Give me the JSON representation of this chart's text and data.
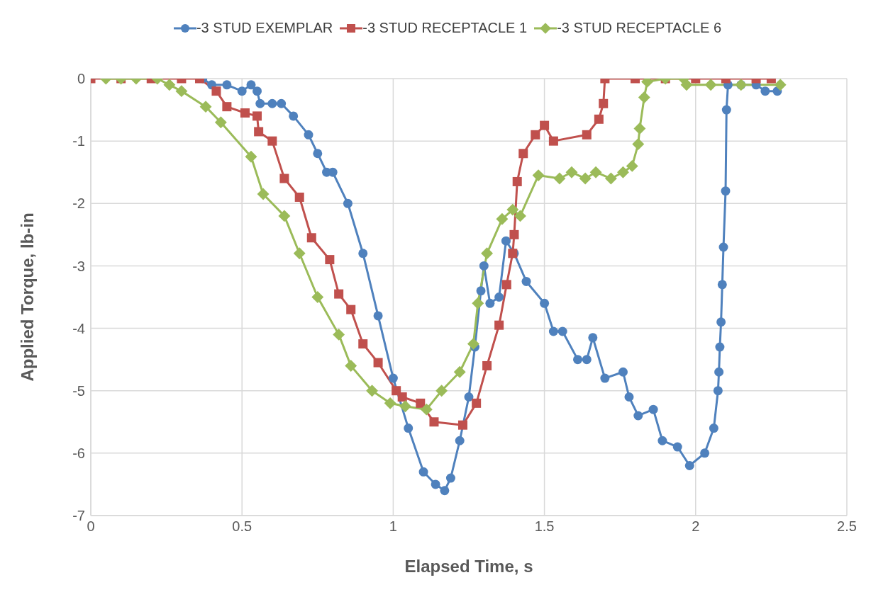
{
  "chart_data": {
    "type": "line",
    "xlabel": "Elapsed Time, s",
    "ylabel": "Applied Torque, lb-in",
    "xlim": [
      0,
      2.5
    ],
    "xticks": [
      0,
      0.5,
      1,
      1.5,
      2,
      2.5
    ],
    "ylim": [
      -7,
      0
    ],
    "yticks": [
      -7,
      -6,
      -5,
      -4,
      -3,
      -2,
      -1,
      0
    ],
    "grid": true,
    "legend": "top",
    "series": [
      {
        "name": "-3 STUD EXEMPLAR",
        "color": "#4f81bd",
        "marker": "circle",
        "x": [
          0.37,
          0.4,
          0.45,
          0.5,
          0.53,
          0.55,
          0.56,
          0.6,
          0.63,
          0.67,
          0.72,
          0.75,
          0.78,
          0.8,
          0.85,
          0.9,
          0.95,
          1.0,
          1.05,
          1.1,
          1.14,
          1.17,
          1.19,
          1.22,
          1.25,
          1.27,
          1.29,
          1.3,
          1.32,
          1.35,
          1.373,
          1.4,
          1.44,
          1.5,
          1.53,
          1.56,
          1.61,
          1.64,
          1.66,
          1.7,
          1.76,
          1.78,
          1.81,
          1.86,
          1.89,
          1.94,
          1.98,
          2.03,
          2.06,
          2.074,
          2.077,
          2.08,
          2.084,
          2.088,
          2.092,
          2.099,
          2.102,
          2.107,
          2.15,
          2.2,
          2.23,
          2.27
        ],
        "values": [
          0,
          -0.1,
          -0.1,
          -0.2,
          -0.1,
          -0.2,
          -0.4,
          -0.4,
          -0.4,
          -0.6,
          -0.9,
          -1.2,
          -1.5,
          -1.5,
          -2.0,
          -2.8,
          -3.8,
          -4.8,
          -5.6,
          -6.3,
          -6.5,
          -6.6,
          -6.4,
          -5.8,
          -5.1,
          -4.3,
          -3.4,
          -3.0,
          -3.6,
          -3.5,
          -2.6,
          -2.8,
          -3.25,
          -3.6,
          -4.05,
          -4.05,
          -4.5,
          -4.5,
          -4.15,
          -4.8,
          -4.7,
          -5.1,
          -5.4,
          -5.3,
          -5.8,
          -5.9,
          -6.2,
          -6.0,
          -5.6,
          -5.0,
          -4.7,
          -4.3,
          -3.9,
          -3.3,
          -2.7,
          -1.8,
          -0.5,
          -0.1,
          -0.1,
          -0.1,
          -0.2,
          -0.2
        ]
      },
      {
        "name": "-3 STUD RECEPTACLE 1",
        "color": "#c0504d",
        "marker": "square",
        "x": [
          0,
          0.1,
          0.2,
          0.3,
          0.36,
          0.415,
          0.45,
          0.51,
          0.55,
          0.555,
          0.6,
          0.64,
          0.69,
          0.73,
          0.79,
          0.82,
          0.86,
          0.9,
          0.95,
          1.01,
          1.03,
          1.09,
          1.135,
          1.23,
          1.275,
          1.31,
          1.35,
          1.375,
          1.395,
          1.4,
          1.41,
          1.43,
          1.47,
          1.5,
          1.53,
          1.64,
          1.68,
          1.695,
          1.7,
          1.8,
          1.9,
          2.0,
          2.1,
          2.2,
          2.25
        ],
        "values": [
          0,
          0,
          0,
          0,
          0,
          -0.2,
          -0.45,
          -0.55,
          -0.6,
          -0.85,
          -1.0,
          -1.6,
          -1.9,
          -2.55,
          -2.9,
          -3.45,
          -3.7,
          -4.25,
          -4.55,
          -5.0,
          -5.1,
          -5.2,
          -5.5,
          -5.55,
          -5.2,
          -4.6,
          -3.95,
          -3.3,
          -2.8,
          -2.5,
          -1.65,
          -1.2,
          -0.9,
          -0.75,
          -1.0,
          -0.9,
          -0.65,
          -0.4,
          0,
          0,
          0,
          0,
          0,
          0,
          0
        ]
      },
      {
        "name": "-3 STUD RECEPTACLE 6",
        "color": "#9bbb59",
        "marker": "diamond",
        "x": [
          0.05,
          0.1,
          0.15,
          0.22,
          0.26,
          0.3,
          0.38,
          0.43,
          0.53,
          0.57,
          0.64,
          0.69,
          0.75,
          0.82,
          0.86,
          0.93,
          0.99,
          1.04,
          1.11,
          1.16,
          1.22,
          1.265,
          1.28,
          1.31,
          1.36,
          1.395,
          1.42,
          1.48,
          1.55,
          1.59,
          1.635,
          1.67,
          1.72,
          1.76,
          1.79,
          1.81,
          1.815,
          1.83,
          1.84,
          1.9,
          1.96,
          1.97,
          2.05,
          2.15,
          2.28
        ],
        "values": [
          0,
          0,
          0,
          0,
          -0.1,
          -0.2,
          -0.45,
          -0.7,
          -1.25,
          -1.85,
          -2.2,
          -2.8,
          -3.5,
          -4.1,
          -4.6,
          -5.0,
          -5.2,
          -5.25,
          -5.3,
          -5.0,
          -4.7,
          -4.25,
          -3.6,
          -2.8,
          -2.25,
          -2.1,
          -2.2,
          -1.55,
          -1.6,
          -1.5,
          -1.6,
          -1.5,
          -1.6,
          -1.5,
          -1.4,
          -1.05,
          -0.8,
          -0.3,
          -0.05,
          0,
          0,
          -0.1,
          -0.1,
          -0.1,
          -0.1
        ]
      }
    ]
  }
}
